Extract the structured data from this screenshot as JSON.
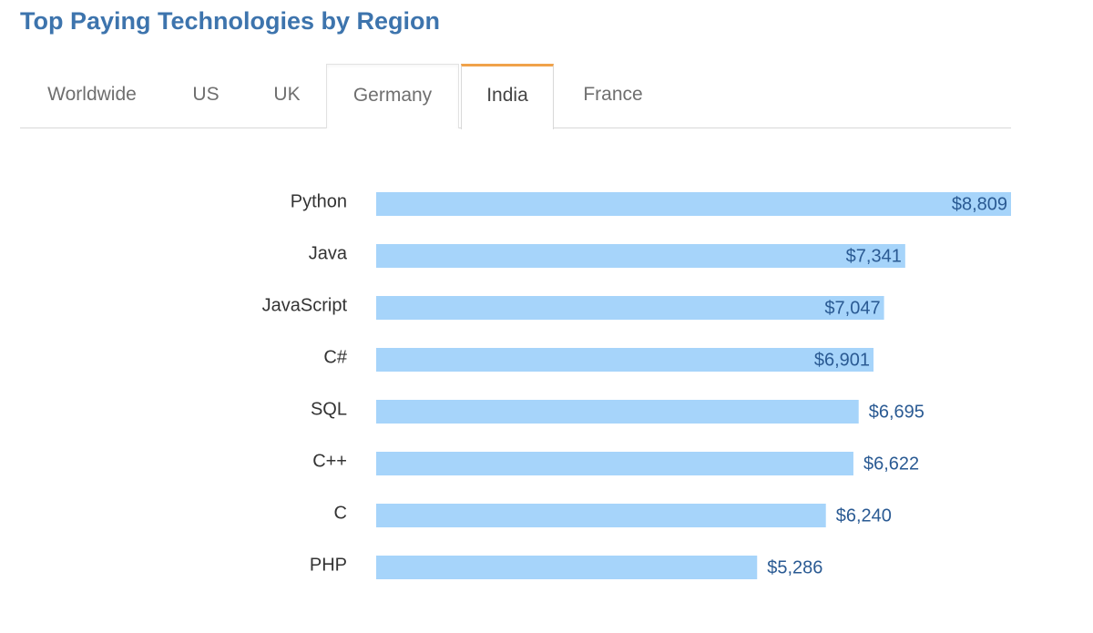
{
  "page": {
    "title": "Top Paying Technologies by Region"
  },
  "tabs": [
    {
      "label": "Worldwide",
      "selected": false
    },
    {
      "label": "US",
      "selected": false
    },
    {
      "label": "UK",
      "selected": false
    },
    {
      "label": "Germany",
      "selected": false
    },
    {
      "label": "India",
      "selected": true
    },
    {
      "label": "France",
      "selected": false
    }
  ],
  "colors": {
    "title": "#3d74ad",
    "bar": "#a6d4fa",
    "value_label": "#2a5a93",
    "category_label": "#333333",
    "active_tab_accent": "#f0a24a"
  },
  "chart_data": {
    "type": "bar",
    "orientation": "horizontal",
    "region": "India",
    "categories": [
      "Python",
      "Java",
      "JavaScript",
      "C#",
      "SQL",
      "C++",
      "C",
      "PHP"
    ],
    "values": [
      8809,
      7341,
      7047,
      6901,
      6695,
      6622,
      6240,
      5286
    ],
    "value_labels": [
      "$8,809",
      "$7,341",
      "$7,047",
      "$6,901",
      "$6,695",
      "$6,622",
      "$6,240",
      "$5,286"
    ],
    "xlim": [
      0,
      8809
    ],
    "title": "",
    "xlabel": "",
    "ylabel": "",
    "grid": false,
    "legend": "none"
  }
}
